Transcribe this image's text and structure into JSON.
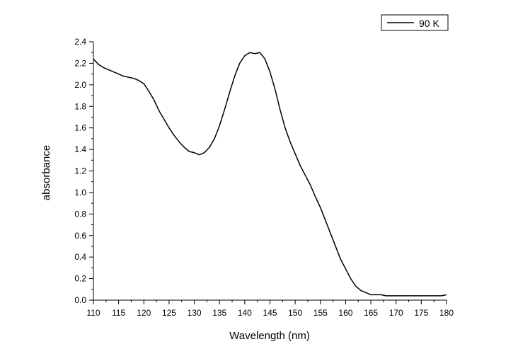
{
  "chart_data": {
    "type": "line",
    "title": "",
    "xlabel": "Wavelength (nm)",
    "ylabel": "absorbance",
    "xlim": [
      110,
      180
    ],
    "ylim": [
      0.0,
      2.4
    ],
    "x_ticks": [
      "110",
      "115",
      "120",
      "125",
      "130",
      "135",
      "140",
      "145",
      "150",
      "155",
      "160",
      "165",
      "170",
      "175",
      "180"
    ],
    "y_ticks": [
      "0.0",
      "0.2",
      "0.4",
      "0.6",
      "0.8",
      "1.0",
      "1.2",
      "1.4",
      "1.6",
      "1.8",
      "2.0",
      "2.2",
      "2.4"
    ],
    "legend_position": "top-right",
    "grid": false,
    "series": [
      {
        "name": "90 K",
        "color": "#000000",
        "x": [
          110,
          111,
          112,
          113,
          114,
          115,
          116,
          117,
          118,
          119,
          120,
          121,
          122,
          123,
          124,
          125,
          126,
          127,
          128,
          129,
          130,
          131,
          132,
          133,
          134,
          135,
          136,
          137,
          138,
          139,
          140,
          141,
          142,
          143,
          144,
          145,
          146,
          147,
          148,
          149,
          150,
          151,
          152,
          153,
          154,
          155,
          156,
          157,
          158,
          159,
          160,
          161,
          162,
          163,
          164,
          165,
          166,
          167,
          168,
          169,
          170,
          171,
          172,
          173,
          174,
          175,
          176,
          177,
          178,
          179,
          180
        ],
        "y": [
          2.24,
          2.19,
          2.16,
          2.14,
          2.12,
          2.1,
          2.08,
          2.07,
          2.06,
          2.04,
          2.01,
          1.94,
          1.86,
          1.76,
          1.68,
          1.6,
          1.53,
          1.47,
          1.42,
          1.38,
          1.37,
          1.35,
          1.37,
          1.42,
          1.5,
          1.62,
          1.77,
          1.93,
          2.08,
          2.2,
          2.27,
          2.3,
          2.29,
          2.3,
          2.24,
          2.12,
          1.96,
          1.77,
          1.6,
          1.47,
          1.36,
          1.25,
          1.16,
          1.07,
          0.96,
          0.86,
          0.74,
          0.62,
          0.5,
          0.38,
          0.29,
          0.2,
          0.13,
          0.09,
          0.07,
          0.05,
          0.05,
          0.05,
          0.04,
          0.04,
          0.04,
          0.04,
          0.04,
          0.04,
          0.04,
          0.04,
          0.04,
          0.04,
          0.04,
          0.04,
          0.05
        ]
      }
    ]
  }
}
